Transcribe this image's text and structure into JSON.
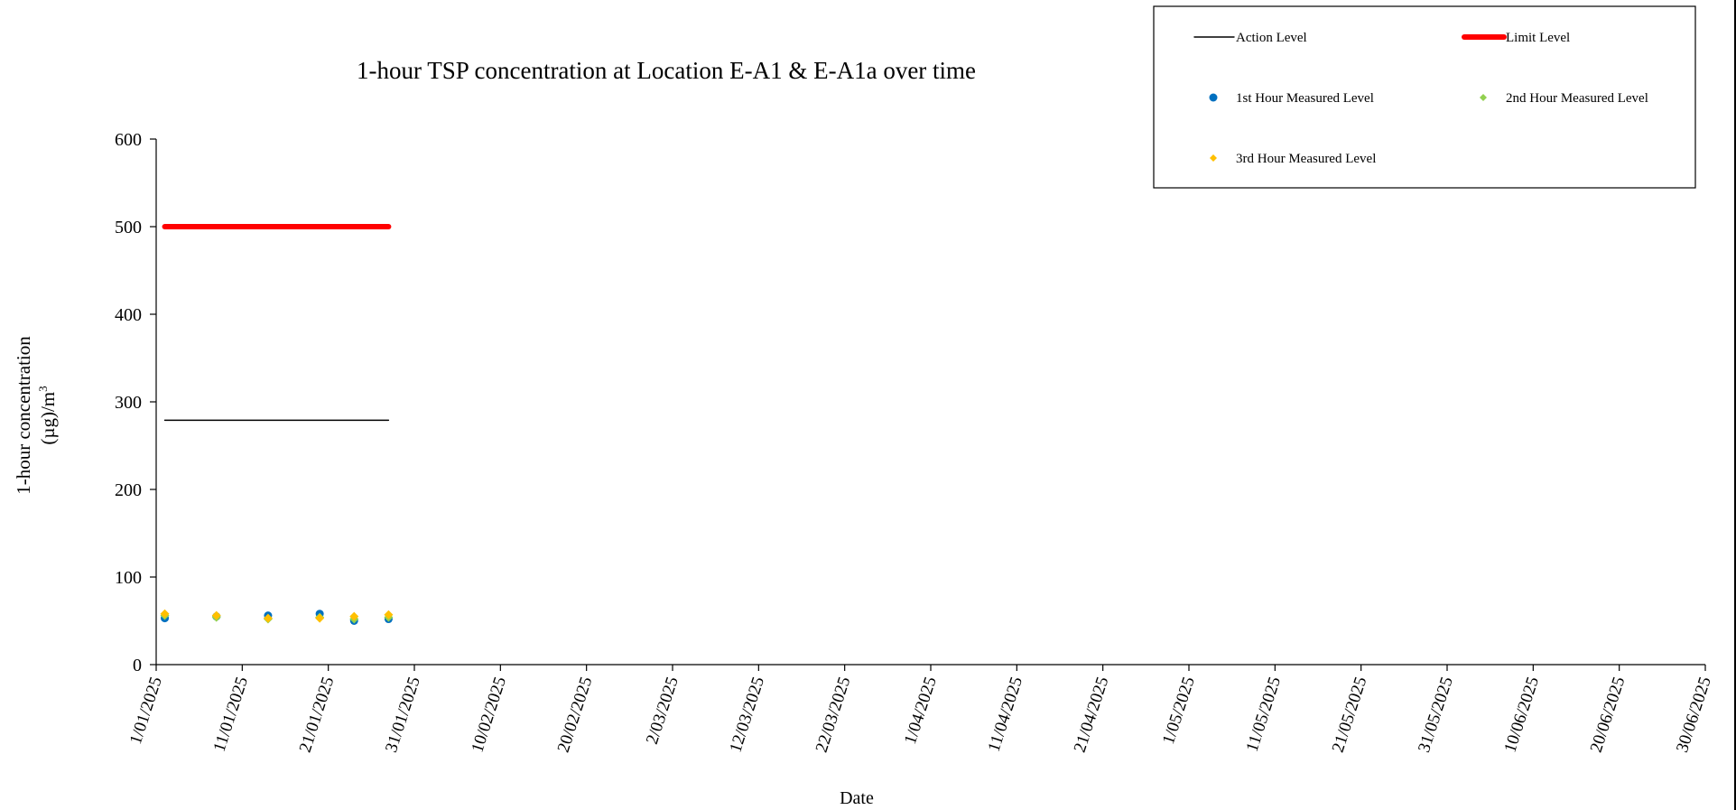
{
  "chart_data": {
    "type": "scatter",
    "title": "1-hour TSP concentration at Location E-A1 & E-A1a over time",
    "xlabel": "Date",
    "ylabel": "1-hour concentration",
    "ylabel_unit": "(µg)/m",
    "ylabel_unit_sup": "3",
    "xlim": [
      "2025-01-01",
      "2025-06-30"
    ],
    "ylim": [
      0,
      600
    ],
    "yticks": [
      0,
      100,
      200,
      300,
      400,
      500,
      600
    ],
    "xtick_labels": [
      "1/01/2025",
      "11/01/2025",
      "21/01/2025",
      "31/01/2025",
      "10/02/2025",
      "20/02/2025",
      "2/03/2025",
      "12/03/2025",
      "22/03/2025",
      "1/04/2025",
      "11/04/2025",
      "21/04/2025",
      "1/05/2025",
      "11/05/2025",
      "21/05/2025",
      "31/05/2025",
      "10/06/2025",
      "20/06/2025",
      "30/06/2025"
    ],
    "xtick_dates": [
      "2025-01-01",
      "2025-01-11",
      "2025-01-21",
      "2025-01-31",
      "2025-02-10",
      "2025-02-20",
      "2025-03-02",
      "2025-03-12",
      "2025-03-22",
      "2025-04-01",
      "2025-04-11",
      "2025-04-21",
      "2025-05-01",
      "2025-05-11",
      "2025-05-21",
      "2025-05-31",
      "2025-06-10",
      "2025-06-20",
      "2025-06-30"
    ],
    "grid": false,
    "legend_position": "top-right",
    "series": [
      {
        "name": "Action Level",
        "kind": "line",
        "color": "#000000",
        "x": [
          "2025-01-02",
          "2025-01-28"
        ],
        "y": [
          279,
          279
        ]
      },
      {
        "name": "Limit Level",
        "kind": "line",
        "color": "#ff0000",
        "x": [
          "2025-01-02",
          "2025-01-28"
        ],
        "y": [
          500,
          500
        ]
      },
      {
        "name": "1st Hour Measured Level",
        "kind": "marker",
        "marker": "circle",
        "color": "#0070c0",
        "x": [
          "2025-01-02",
          "2025-01-08",
          "2025-01-14",
          "2025-01-20",
          "2025-01-24",
          "2025-01-28"
        ],
        "y": [
          53,
          55,
          56,
          58,
          50,
          52
        ]
      },
      {
        "name": "2nd Hour Measured Level",
        "kind": "marker",
        "marker": "diamond",
        "color": "#92d050",
        "x": [
          "2025-01-02",
          "2025-01-08",
          "2025-01-14",
          "2025-01-20",
          "2025-01-24",
          "2025-01-28"
        ],
        "y": [
          56,
          54,
          52,
          54,
          52,
          54
        ]
      },
      {
        "name": "3rd Hour Measured Level",
        "kind": "marker",
        "marker": "diamond",
        "color": "#ffc000",
        "x": [
          "2025-01-02",
          "2025-01-08",
          "2025-01-14",
          "2025-01-20",
          "2025-01-24",
          "2025-01-28"
        ],
        "y": [
          58,
          56,
          53,
          53,
          55,
          57
        ]
      }
    ]
  }
}
